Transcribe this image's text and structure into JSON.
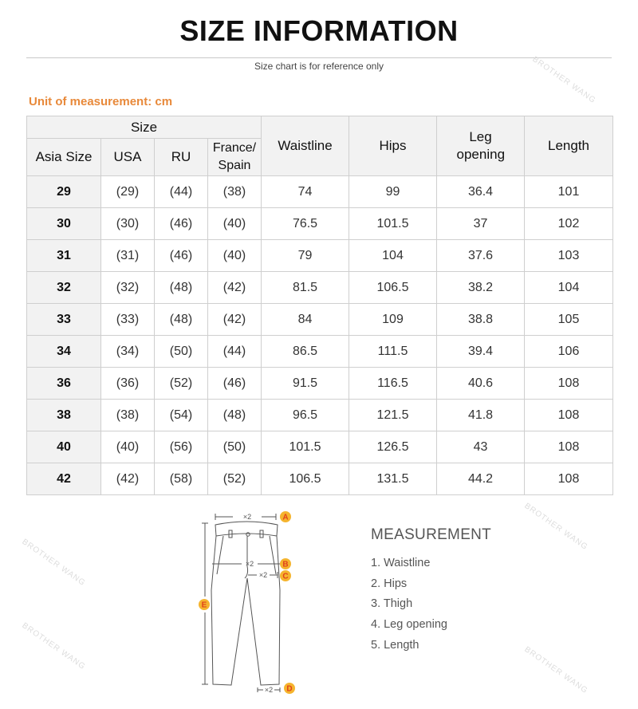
{
  "title": "SIZE INFORMATION",
  "subtitle": "Size chart is for reference only",
  "unit_label": "Unit of measurement: cm",
  "watermark": "BROTHER WANG",
  "table": {
    "size_group": "Size",
    "size_columns": [
      "Asia Size",
      "USA",
      "RU",
      "France/ Spain"
    ],
    "measure_columns": [
      "Waistline",
      "Hips",
      "Leg opening",
      "Length"
    ],
    "rows": [
      [
        "29",
        "(29)",
        "(44)",
        "(38)",
        "74",
        "99",
        "36.4",
        "101"
      ],
      [
        "30",
        "(30)",
        "(46)",
        "(40)",
        "76.5",
        "101.5",
        "37",
        "102"
      ],
      [
        "31",
        "(31)",
        "(46)",
        "(40)",
        "79",
        "104",
        "37.6",
        "103"
      ],
      [
        "32",
        "(32)",
        "(48)",
        "(42)",
        "81.5",
        "106.5",
        "38.2",
        "104"
      ],
      [
        "33",
        "(33)",
        "(48)",
        "(42)",
        "84",
        "109",
        "38.8",
        "105"
      ],
      [
        "34",
        "(34)",
        "(50)",
        "(44)",
        "86.5",
        "111.5",
        "39.4",
        "106"
      ],
      [
        "36",
        "(36)",
        "(52)",
        "(46)",
        "91.5",
        "116.5",
        "40.6",
        "108"
      ],
      [
        "38",
        "(38)",
        "(54)",
        "(48)",
        "96.5",
        "121.5",
        "41.8",
        "108"
      ],
      [
        "40",
        "(40)",
        "(56)",
        "(50)",
        "101.5",
        "126.5",
        "43",
        "108"
      ],
      [
        "42",
        "(42)",
        "(58)",
        "(52)",
        "106.5",
        "131.5",
        "44.2",
        "108"
      ]
    ]
  },
  "diagram": {
    "multiplier": "×2",
    "markers": [
      "A",
      "B",
      "C",
      "D",
      "E"
    ],
    "marker_color": "#f5b42e",
    "marker_text_color": "#e0421b"
  },
  "measurement": {
    "title": "MEASUREMENT",
    "items": [
      "1. Waistline",
      "2. Hips",
      "3. Thigh",
      "4. Leg opening",
      "5. Length"
    ]
  },
  "colors": {
    "accent": "#e8893a",
    "header_bg": "#f2f2f2"
  }
}
